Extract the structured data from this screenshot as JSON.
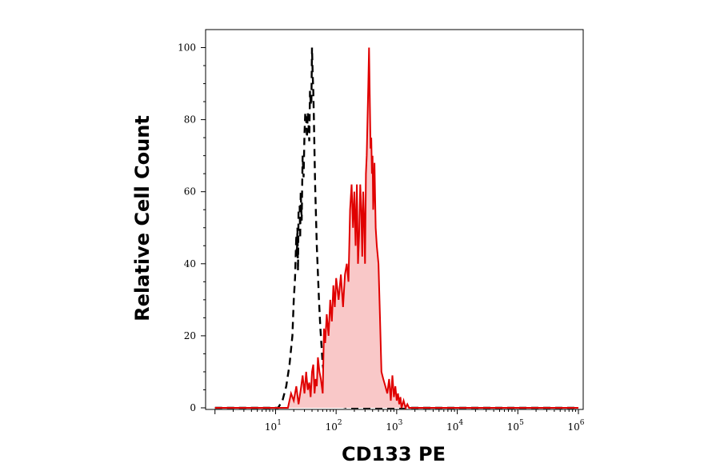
{
  "chart_data": {
    "type": "area",
    "title": "",
    "xlabel": "CD133 PE",
    "ylabel": "Relative Cell Count",
    "xscale": "log",
    "xlim": [
      0.7,
      1200000
    ],
    "ylim": [
      0,
      105
    ],
    "grid": false,
    "legend": "none",
    "x_tick_labels": [
      {
        "base": "10",
        "exp": "1",
        "value": 10
      },
      {
        "base": "10",
        "exp": "2",
        "value": 100
      },
      {
        "base": "10",
        "exp": "3",
        "value": 1000
      },
      {
        "base": "10",
        "exp": "4",
        "value": 10000
      },
      {
        "base": "10",
        "exp": "5",
        "value": 100000
      },
      {
        "base": "10",
        "exp": "6",
        "value": 1000000
      }
    ],
    "y_ticks": [
      0,
      20,
      40,
      60,
      80,
      100
    ],
    "y_tick_labels": [
      "0",
      "20",
      "40",
      "60",
      "80",
      "100"
    ],
    "series": [
      {
        "style": "dashed",
        "color": "#000000",
        "fill": "none",
        "x": [
          1,
          11,
          13,
          15,
          17,
          19,
          20,
          21,
          22,
          22.5,
          23,
          23.5,
          24,
          25,
          25.5,
          26,
          27,
          28,
          29,
          30,
          31,
          32,
          33,
          34,
          35,
          36,
          37,
          38,
          39,
          40,
          41,
          42,
          43,
          44,
          45,
          48,
          52,
          55,
          60,
          70,
          90,
          150,
          10000,
          1000000
        ],
        "y": [
          0,
          0,
          2,
          6,
          12,
          20,
          30,
          36,
          48,
          42,
          50,
          38,
          55,
          56,
          47,
          60,
          52,
          70,
          64,
          76,
          82,
          80,
          75,
          82,
          79,
          74,
          88,
          85,
          84,
          100,
          93,
          88,
          80,
          70,
          62,
          45,
          30,
          22,
          12,
          4,
          1,
          0,
          0,
          0
        ]
      },
      {
        "style": "solid",
        "color": "#e00000",
        "fill": "#f9c8c8",
        "x": [
          1,
          16,
          18,
          20,
          22,
          24,
          26,
          28,
          30,
          32,
          34,
          36,
          38,
          40,
          42,
          44,
          46,
          48,
          50,
          53,
          56,
          60,
          63,
          66,
          70,
          75,
          80,
          85,
          90,
          95,
          100,
          110,
          120,
          130,
          140,
          150,
          160,
          170,
          180,
          190,
          200,
          210,
          220,
          230,
          240,
          250,
          260,
          270,
          280,
          290,
          300,
          310,
          320,
          330,
          340,
          350,
          360,
          370,
          380,
          390,
          400,
          410,
          420,
          430,
          450,
          470,
          500,
          530,
          560,
          600,
          650,
          700,
          750,
          800,
          850,
          900,
          950,
          1000,
          1050,
          1100,
          1150,
          1200,
          1300,
          1400,
          1500,
          1600,
          10000,
          100000,
          1000000
        ],
        "y": [
          0,
          0,
          4,
          2,
          6,
          1,
          5,
          9,
          4,
          10,
          5,
          7,
          3,
          10,
          12,
          4,
          8,
          6,
          14,
          10,
          8,
          4,
          22,
          18,
          26,
          20,
          30,
          24,
          34,
          28,
          36,
          30,
          37,
          28,
          37,
          40,
          35,
          55,
          62,
          50,
          60,
          45,
          62,
          40,
          48,
          62,
          55,
          42,
          60,
          52,
          40,
          65,
          70,
          80,
          90,
          100,
          85,
          72,
          75,
          65,
          70,
          55,
          60,
          68,
          50,
          45,
          40,
          25,
          10,
          8,
          6,
          4,
          8,
          2,
          9,
          3,
          6,
          2,
          4,
          1,
          3,
          0,
          2,
          0,
          1,
          0,
          0,
          0,
          0
        ]
      }
    ]
  }
}
